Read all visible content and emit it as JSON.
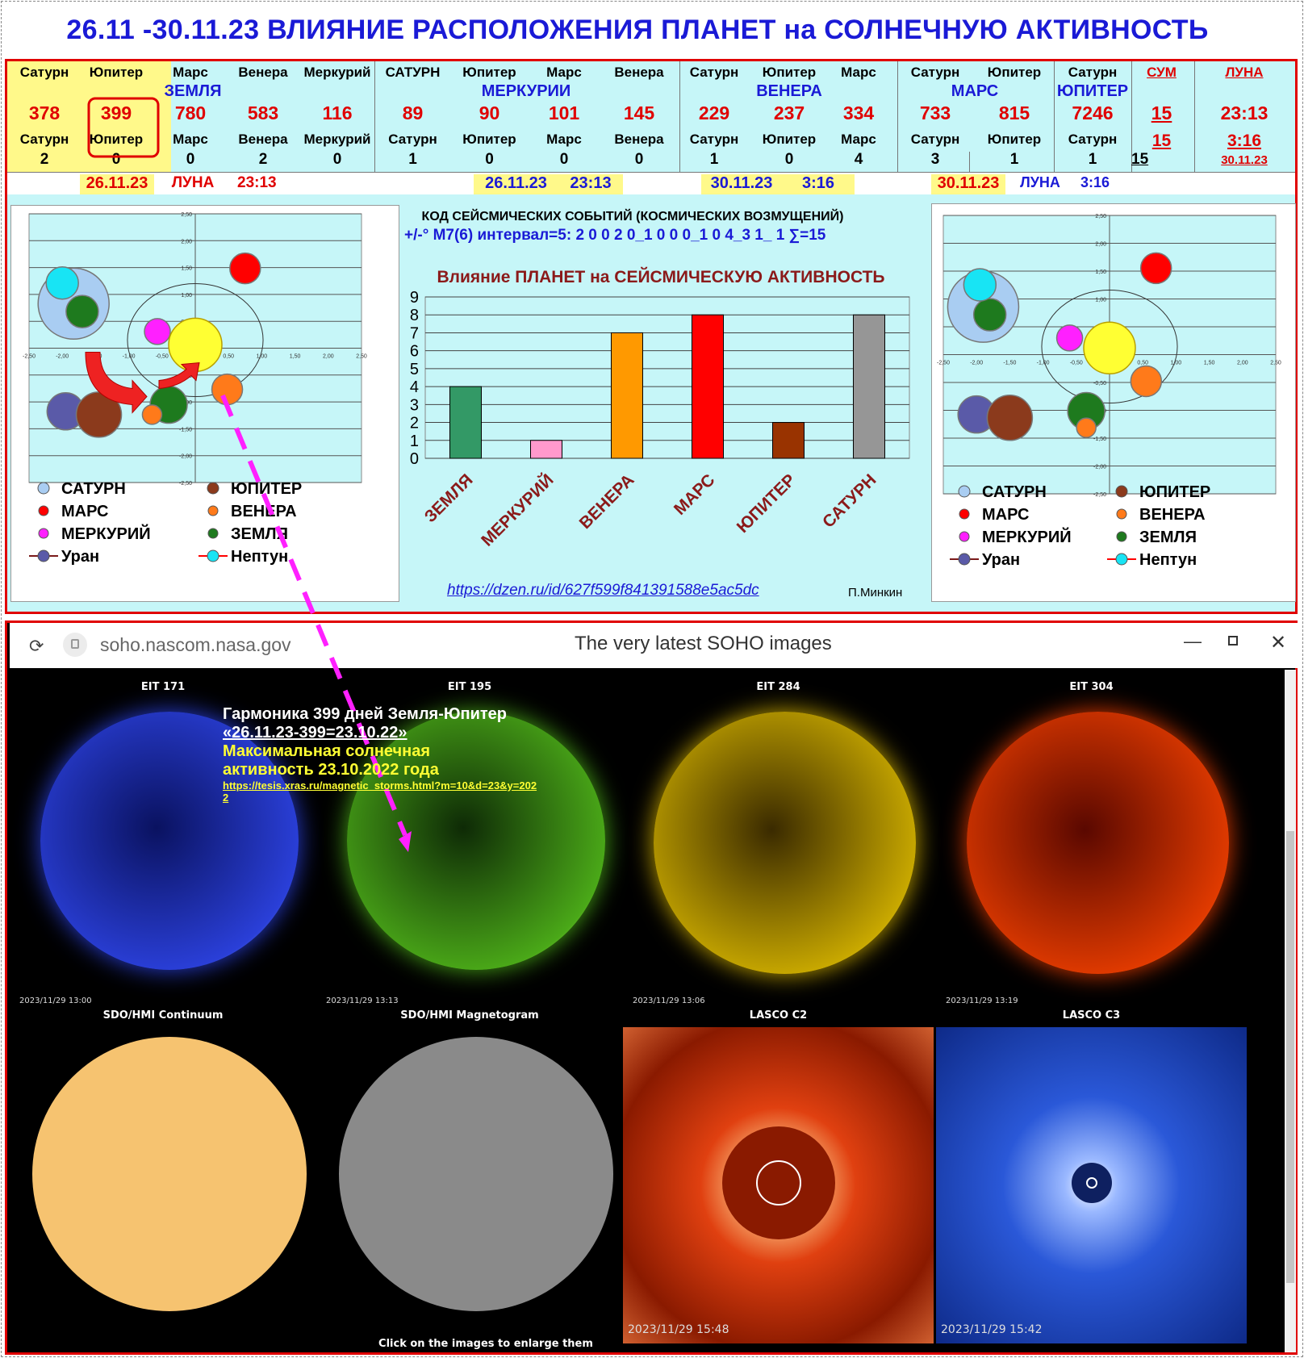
{
  "title": "26.11 -30.11.23 ВЛИЯНИЕ РАСПОЛОЖЕНИЯ ПЛАНЕТ на СОЛНЕЧНУЮ АКТИВНОСТЬ",
  "table": {
    "headers": [
      "Сатурн",
      "Юпитер",
      "Марс",
      "Венера",
      "Меркурий",
      "САТУРН",
      "Юпитер",
      "Марс",
      "Венера",
      "Сатурн",
      "Юпитер",
      "Марс",
      "Сатурн",
      "Юпитер",
      "Сатурн",
      "СУМ",
      "ЛУНА"
    ],
    "groups": {
      "earth": "ЗЕМЛЯ",
      "mercury": "МЕРКУРИИ",
      "venus": "ВЕНЕРА",
      "mars": "МАРС",
      "jupiter": "ЮПИТЕР"
    },
    "values": [
      "378",
      "399",
      "780",
      "583",
      "116",
      "89",
      "90",
      "101",
      "145",
      "229",
      "237",
      "334",
      "733",
      "815",
      "7246",
      "15",
      "23:13"
    ],
    "headers2": [
      "Сатурн",
      "Юпитер",
      "Марс",
      "Венера",
      "Меркурий",
      "Сатурн",
      "Юпитер",
      "Марс",
      "Венера",
      "Сатурн",
      "Юпитер",
      "Марс",
      "Сатурн",
      "Юпитер",
      "Сатурн",
      "15",
      "3:16"
    ],
    "counts": [
      "2",
      "0",
      "0",
      "2",
      "0",
      "1",
      "0",
      "0",
      "0",
      "1",
      "0",
      "4",
      "3",
      "1",
      "1",
      "15",
      "30.11.23"
    ],
    "date_row": {
      "d1": "26.11.23",
      "moon": "ЛУНА",
      "t1": "23:13",
      "d2": "26.11.23",
      "t2": "23:13",
      "d3": "30.11.23",
      "t3": "3:16",
      "d4": "30.11.23",
      "moon2": "ЛУНА",
      "t4": "3:16"
    }
  },
  "seismic": {
    "title": "КОД СЕЙСМИЧЕСКИХ СОБЫТИЙ (КОСМИЧЕСКИХ ВОЗМУЩЕНИЙ)",
    "code": "+/-° М7(6) интервал=5:  2 0 0 2 0_1 0 0 0_1 0 4_3 1_ 1  ∑=15"
  },
  "orbit_axis": {
    "ticks_x": [
      "-2,50",
      "-2,00",
      "-1,50",
      "-1,00",
      "-0,50",
      "0,00",
      "0,50",
      "1,00",
      "1,50",
      "2,00",
      "2,50"
    ],
    "ticks_y": [
      "2,50",
      "2,00",
      "1,50",
      "1,00",
      "0,50",
      "0,00",
      "-0,50",
      "-1,00",
      "-1,50",
      "-2,00",
      "-2,50"
    ]
  },
  "legend": {
    "saturn": "САТУРН",
    "jupiter": "ЮПИТЕР",
    "mars": "МАРС",
    "venus": "ВЕНЕРА",
    "mercury": "МЕРКУРИЙ",
    "earth": "ЗЕМЛЯ",
    "uranus": "Уран",
    "neptune": "Нептун"
  },
  "colors": {
    "saturn": "#a9cdf2",
    "jupiter": "#8b3a1c",
    "mars": "#ff0000",
    "venus": "#ff7a1a",
    "mercury": "#ff20ff",
    "earth": "#1e7a1e",
    "uranus": "#5a5aa8",
    "neptune": "#18e4f4",
    "sun": "#ffff33"
  },
  "chart_data": {
    "type": "bar",
    "title": "Влияние ПЛАНЕТ на СЕЙСМИЧЕСКУЮ АКТИВНОСТЬ",
    "categories": [
      "ЗЕМЛЯ",
      "МЕРКУРИЙ",
      "ВЕНЕРА",
      "МАРС",
      "ЮПИТЕР",
      "САТУРН"
    ],
    "values": [
      4,
      1,
      7,
      8,
      2,
      8
    ],
    "colors": [
      "#339966",
      "#ff99cc",
      "#ff9900",
      "#ff0000",
      "#993300",
      "#969696"
    ],
    "ylim": [
      0,
      9
    ],
    "yticks": [
      "0",
      "1",
      "2",
      "3",
      "4",
      "5",
      "6",
      "7",
      "8",
      "9"
    ],
    "grid": true
  },
  "link": "https://dzen.ru/id/627f599f841391588e5ac5dc",
  "author": "П.Минкин",
  "browser": {
    "url": "soho.nascom.nasa.gov",
    "title": "The very latest SOHO images"
  },
  "soho": {
    "labels": [
      "EIT 171",
      "EIT 195",
      "EIT 284",
      "EIT 304",
      "SDO/HMI Continuum",
      "SDO/HMI Magnetogram",
      "LASCO C2",
      "LASCO C3"
    ],
    "stamps": [
      "2023/11/29 13:00",
      "2023/11/29 13:13",
      "2023/11/29 13:06",
      "2023/11/29 13:19",
      "2023/11/29 15:48",
      "2023/11/29 15:42"
    ],
    "footer": "Click on the images to enlarge them"
  },
  "annotation": {
    "line1": "Гармоника 399 дней Земля-Юпитер",
    "line2": "«26.11.23-399=23.10.22»",
    "line3": "Максимальная солнечная",
    "line4": "активность 23.10.2022 года",
    "link": "https://tesis.xras.ru/magnetic_storms.html?m=10&d=23&y=2022"
  }
}
